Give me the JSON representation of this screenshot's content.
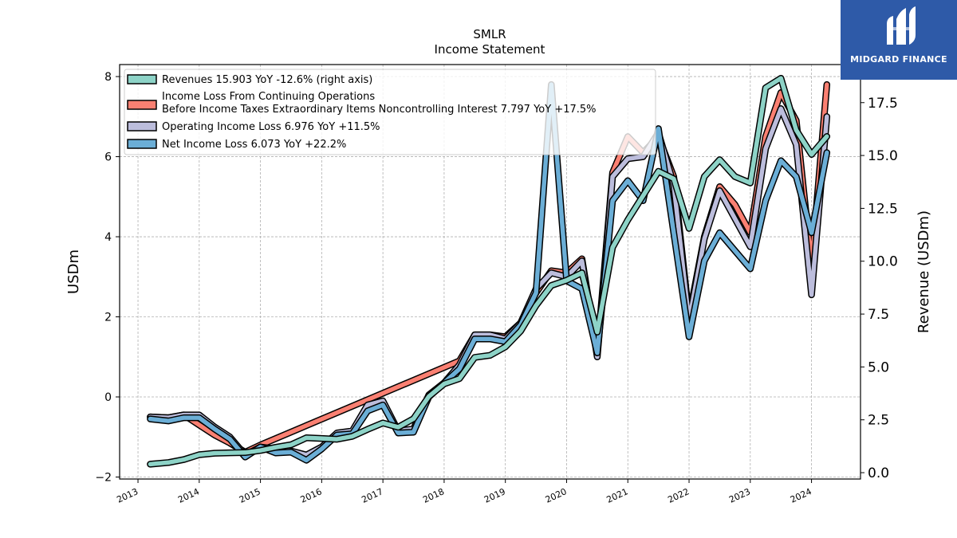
{
  "chart_data": {
    "type": "line",
    "title": "SMLR",
    "subtitle": "Income Statement",
    "ylabel": "USDm",
    "ylabel_right": "Revenue (USDm)",
    "ylim": [
      -2.05,
      8.3
    ],
    "ylim_right": [
      -0.3,
      19.3
    ],
    "xlim": [
      2012.7,
      2024.8
    ],
    "y_ticks": [
      -2,
      0,
      2,
      4,
      6,
      8
    ],
    "y_ticks_right": [
      0.0,
      2.5,
      5.0,
      7.5,
      10.0,
      12.5,
      15.0,
      17.5
    ],
    "x_ticks": [
      "2013",
      "2014",
      "2015",
      "2016",
      "2017",
      "2018",
      "2019",
      "2020",
      "2021",
      "2022",
      "2023",
      "2024"
    ],
    "grid": true,
    "legend_position": "top-left",
    "series": [
      {
        "name": "Income Loss From Continuing Operations Before Income Taxes Extraordinary Items Noncontrolling Interest",
        "legend_lines": [
          "Income Loss From Continuing Operations",
          "Before Income Taxes Extraordinary Items Noncontrolling Interest  7.797 YoY +17.5%"
        ],
        "color": "#fa8072",
        "axis": "left",
        "points": [
          [
            2013.2,
            -0.5
          ],
          [
            2013.5,
            -0.52
          ],
          [
            2013.75,
            -0.45
          ],
          [
            2014.0,
            -0.7
          ],
          [
            2014.25,
            -0.95
          ],
          [
            2014.5,
            -1.15
          ],
          [
            2014.75,
            -1.38
          ],
          [
            2015.0,
            -1.2
          ],
          [
            2018.25,
            0.9
          ],
          [
            2018.5,
            1.55
          ],
          [
            2018.75,
            1.55
          ],
          [
            2019.0,
            1.5
          ],
          [
            2019.25,
            1.85
          ],
          [
            2019.5,
            2.6
          ],
          [
            2019.75,
            3.15
          ],
          [
            2020.0,
            3.1
          ],
          [
            2020.25,
            3.45
          ],
          [
            2020.5,
            1.1
          ],
          [
            2020.75,
            5.6
          ],
          [
            2021.0,
            6.5
          ],
          [
            2021.25,
            6.1
          ],
          [
            2021.5,
            6.5
          ],
          [
            2021.75,
            5.5
          ],
          [
            2022.0,
            2.0
          ],
          [
            2022.25,
            4.0
          ],
          [
            2022.5,
            5.25
          ],
          [
            2022.75,
            4.8
          ],
          [
            2023.0,
            4.1
          ],
          [
            2023.25,
            6.5
          ],
          [
            2023.5,
            7.6
          ],
          [
            2023.75,
            6.9
          ],
          [
            2024.0,
            3.3
          ],
          [
            2024.25,
            7.8
          ]
        ]
      },
      {
        "name": "Operating Income Loss",
        "legend_label": "Operating Income Loss  6.976 YoY +11.5%",
        "color": "#bcbddc",
        "axis": "left",
        "points": [
          [
            2013.2,
            -0.5
          ],
          [
            2013.5,
            -0.52
          ],
          [
            2013.75,
            -0.45
          ],
          [
            2014.0,
            -0.45
          ],
          [
            2014.25,
            -0.75
          ],
          [
            2014.5,
            -1.0
          ],
          [
            2014.75,
            -1.45
          ],
          [
            2015.0,
            -1.25
          ],
          [
            2015.25,
            -1.3
          ],
          [
            2015.5,
            -1.35
          ],
          [
            2015.75,
            -1.45
          ],
          [
            2016.0,
            -1.25
          ],
          [
            2016.25,
            -0.9
          ],
          [
            2016.5,
            -0.85
          ],
          [
            2016.75,
            -0.2
          ],
          [
            2017.0,
            -0.1
          ],
          [
            2017.25,
            -0.85
          ],
          [
            2017.5,
            -0.8
          ],
          [
            2017.75,
            0.05
          ],
          [
            2018.0,
            0.35
          ],
          [
            2018.25,
            0.8
          ],
          [
            2018.5,
            1.55
          ],
          [
            2018.75,
            1.55
          ],
          [
            2019.0,
            1.45
          ],
          [
            2019.25,
            1.85
          ],
          [
            2019.5,
            2.7
          ],
          [
            2019.75,
            3.1
          ],
          [
            2020.0,
            3.0
          ],
          [
            2020.25,
            3.4
          ],
          [
            2020.5,
            1.0
          ],
          [
            2020.75,
            5.5
          ],
          [
            2021.0,
            5.95
          ],
          [
            2021.25,
            6.0
          ],
          [
            2021.5,
            6.6
          ],
          [
            2021.75,
            5.3
          ],
          [
            2022.0,
            1.9
          ],
          [
            2022.25,
            3.95
          ],
          [
            2022.5,
            5.15
          ],
          [
            2022.75,
            4.45
          ],
          [
            2023.0,
            3.75
          ],
          [
            2023.25,
            6.2
          ],
          [
            2023.5,
            7.2
          ],
          [
            2023.75,
            6.3
          ],
          [
            2024.0,
            2.55
          ],
          [
            2024.25,
            7.0
          ]
        ]
      },
      {
        "name": "Net Income Loss",
        "legend_label": "Net Income Loss  6.073 YoY +22.2%",
        "color": "#6baed6",
        "axis": "left",
        "points": [
          [
            2013.2,
            -0.55
          ],
          [
            2013.5,
            -0.6
          ],
          [
            2013.75,
            -0.52
          ],
          [
            2014.0,
            -0.52
          ],
          [
            2014.25,
            -0.8
          ],
          [
            2014.5,
            -1.05
          ],
          [
            2014.75,
            -1.5
          ],
          [
            2015.0,
            -1.25
          ],
          [
            2015.25,
            -1.4
          ],
          [
            2015.5,
            -1.38
          ],
          [
            2015.75,
            -1.58
          ],
          [
            2016.0,
            -1.3
          ],
          [
            2016.25,
            -0.95
          ],
          [
            2016.5,
            -0.92
          ],
          [
            2016.75,
            -0.35
          ],
          [
            2017.0,
            -0.2
          ],
          [
            2017.25,
            -0.9
          ],
          [
            2017.5,
            -0.88
          ],
          [
            2017.75,
            0.0
          ],
          [
            2018.0,
            0.35
          ],
          [
            2018.25,
            0.7
          ],
          [
            2018.5,
            1.45
          ],
          [
            2018.75,
            1.45
          ],
          [
            2019.0,
            1.38
          ],
          [
            2019.25,
            1.8
          ],
          [
            2019.5,
            2.6
          ],
          [
            2019.75,
            7.8
          ],
          [
            2020.0,
            2.9
          ],
          [
            2020.25,
            2.7
          ],
          [
            2020.5,
            1.1
          ],
          [
            2020.75,
            4.9
          ],
          [
            2021.0,
            5.4
          ],
          [
            2021.25,
            4.9
          ],
          [
            2021.5,
            6.7
          ],
          [
            2021.75,
            4.1
          ],
          [
            2022.0,
            1.5
          ],
          [
            2022.25,
            3.4
          ],
          [
            2022.5,
            4.1
          ],
          [
            2022.75,
            3.65
          ],
          [
            2023.0,
            3.2
          ],
          [
            2023.25,
            4.9
          ],
          [
            2023.5,
            5.9
          ],
          [
            2023.75,
            5.5
          ],
          [
            2024.0,
            4.1
          ],
          [
            2024.25,
            6.1
          ]
        ]
      },
      {
        "name": "Revenues",
        "legend_label": "Revenues  15.903 YoY -12.6% (right axis)",
        "color": "#8dd3c7",
        "axis": "right",
        "points": [
          [
            2013.2,
            0.4
          ],
          [
            2013.5,
            0.48
          ],
          [
            2013.75,
            0.62
          ],
          [
            2014.0,
            0.85
          ],
          [
            2014.25,
            0.92
          ],
          [
            2014.5,
            0.94
          ],
          [
            2014.75,
            0.95
          ],
          [
            2015.0,
            1.05
          ],
          [
            2015.25,
            1.2
          ],
          [
            2015.5,
            1.32
          ],
          [
            2015.75,
            1.65
          ],
          [
            2016.0,
            1.62
          ],
          [
            2016.25,
            1.58
          ],
          [
            2016.5,
            1.72
          ],
          [
            2016.75,
            2.05
          ],
          [
            2017.0,
            2.35
          ],
          [
            2017.25,
            2.15
          ],
          [
            2017.5,
            2.55
          ],
          [
            2017.75,
            3.6
          ],
          [
            2018.0,
            4.2
          ],
          [
            2018.25,
            4.45
          ],
          [
            2018.5,
            5.45
          ],
          [
            2018.75,
            5.55
          ],
          [
            2019.0,
            5.95
          ],
          [
            2019.25,
            6.7
          ],
          [
            2019.5,
            7.9
          ],
          [
            2019.75,
            8.85
          ],
          [
            2020.0,
            9.1
          ],
          [
            2020.25,
            9.45
          ],
          [
            2020.5,
            6.65
          ],
          [
            2020.75,
            10.65
          ],
          [
            2021.0,
            11.95
          ],
          [
            2021.25,
            13.1
          ],
          [
            2021.5,
            14.25
          ],
          [
            2021.75,
            13.9
          ],
          [
            2022.0,
            11.55
          ],
          [
            2022.25,
            14.0
          ],
          [
            2022.5,
            14.8
          ],
          [
            2022.75,
            14.0
          ],
          [
            2023.0,
            13.7
          ],
          [
            2023.25,
            18.2
          ],
          [
            2023.5,
            18.65
          ],
          [
            2023.75,
            16.2
          ],
          [
            2024.0,
            15.05
          ],
          [
            2024.25,
            15.9
          ]
        ]
      }
    ]
  },
  "brand": {
    "name": "MIDGARD FINANCE",
    "background_color": "#2e5aa8",
    "logo_icon": "midgard-logo-icon"
  }
}
